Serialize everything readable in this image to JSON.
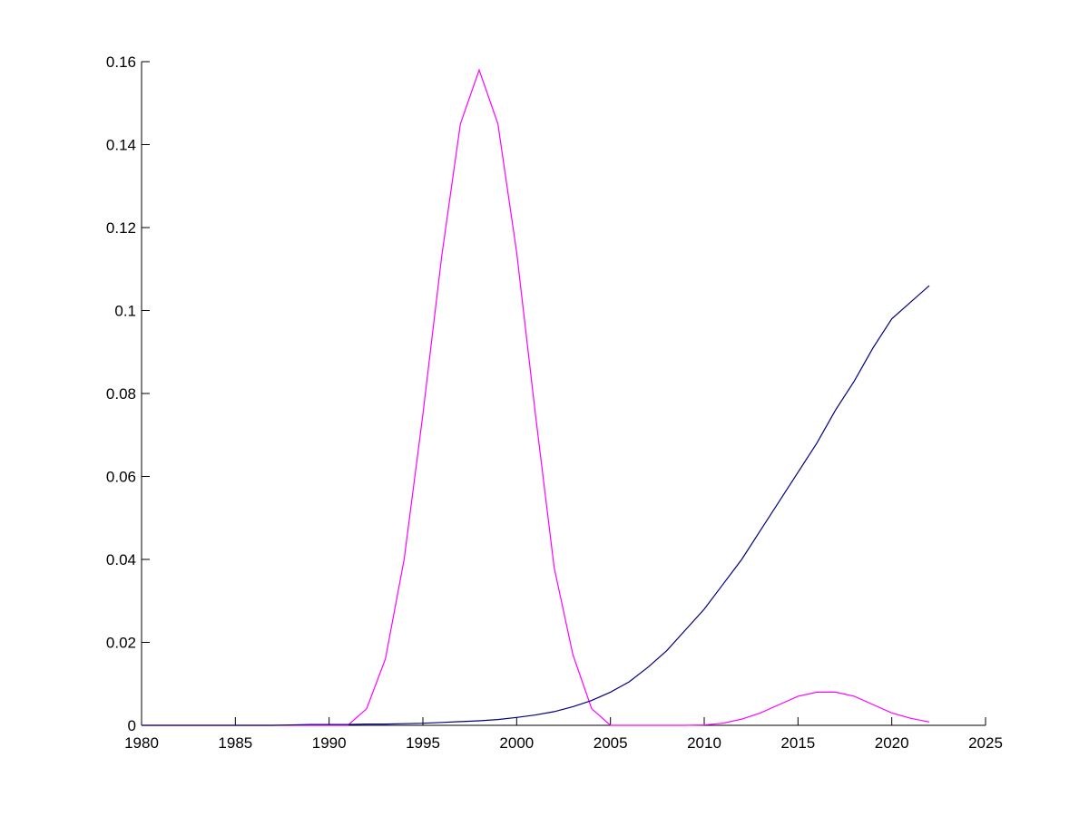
{
  "chart_data": {
    "type": "line",
    "x": [
      1980,
      1981,
      1982,
      1983,
      1984,
      1985,
      1986,
      1987,
      1988,
      1989,
      1990,
      1991,
      1992,
      1993,
      1994,
      1995,
      1996,
      1997,
      1998,
      1999,
      2000,
      2001,
      2002,
      2003,
      2004,
      2005,
      2006,
      2007,
      2008,
      2009,
      2010,
      2011,
      2012,
      2013,
      2014,
      2015,
      2016,
      2017,
      2018,
      2019,
      2020,
      2021,
      2022
    ],
    "series": [
      {
        "color": "#ff00ff",
        "values": [
          0,
          0,
          0,
          0,
          0,
          0,
          0,
          0,
          0,
          0,
          0,
          0,
          0.004,
          0.016,
          0.04,
          0.075,
          0.113,
          0.145,
          0.158,
          0.145,
          0.114,
          0.075,
          0.038,
          0.017,
          0.004,
          0,
          0,
          0,
          0,
          0,
          0.0001,
          0.0005,
          0.0015,
          0.003,
          0.005,
          0.007,
          0.008,
          0.008,
          0.007,
          0.005,
          0.003,
          0.0017,
          0.0008
        ]
      },
      {
        "color": "#00007f",
        "values": [
          0,
          0,
          0,
          0,
          0,
          0,
          0,
          0,
          0.0001,
          0.0002,
          0.0002,
          0.0002,
          0.0003,
          0.0003,
          0.0004,
          0.0005,
          0.0007,
          0.0009,
          0.0011,
          0.0014,
          0.0019,
          0.0025,
          0.0033,
          0.0045,
          0.006,
          0.008,
          0.0105,
          0.014,
          0.018,
          0.023,
          0.028,
          0.034,
          0.04,
          0.047,
          0.054,
          0.061,
          0.068,
          0.076,
          0.083,
          0.091,
          0.098,
          0.102,
          0.106
        ]
      }
    ],
    "xlim": [
      1980,
      2025
    ],
    "xticks": [
      1980,
      1985,
      1990,
      1995,
      2000,
      2005,
      2010,
      2015,
      2020,
      2025
    ],
    "ylim": [
      0,
      0.16
    ],
    "yticks": [
      0,
      0.02,
      0.04,
      0.06,
      0.08,
      0.1,
      0.12,
      0.14,
      0.16
    ]
  }
}
